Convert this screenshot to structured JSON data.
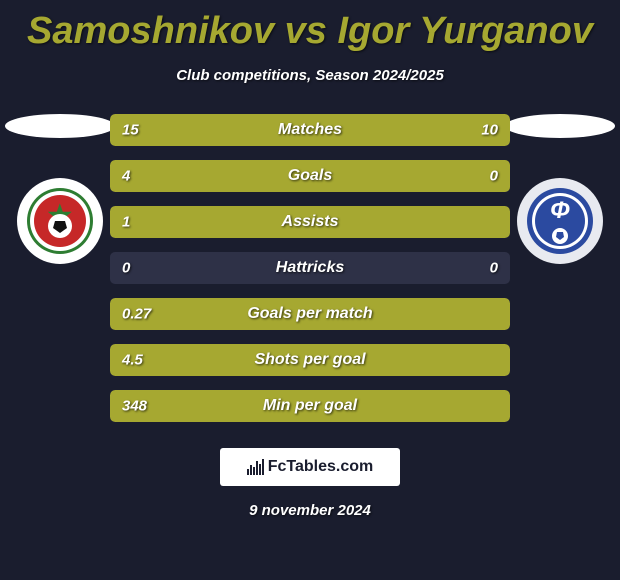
{
  "header": {
    "title": "Samoshnikov vs Igor Yurganov",
    "title_color": "#a6a831",
    "subtitle": "Club competitions, Season 2024/2025"
  },
  "colors": {
    "background": "#1a1d2e",
    "bar_left": "#a6a831",
    "bar_right": "#a6a831",
    "bar_bg": "#2e3147",
    "text": "#ffffff"
  },
  "stats": [
    {
      "label": "Matches",
      "left_val": "15",
      "right_val": "10",
      "left_pct": 60,
      "right_pct": 40,
      "mode": "split"
    },
    {
      "label": "Goals",
      "left_val": "4",
      "right_val": "0",
      "left_pct": 100,
      "right_pct": 0,
      "mode": "split"
    },
    {
      "label": "Assists",
      "left_val": "1",
      "right_val": "",
      "left_pct": 100,
      "right_pct": 0,
      "mode": "single"
    },
    {
      "label": "Hattricks",
      "left_val": "0",
      "right_val": "0",
      "left_pct": 50,
      "right_pct": 50,
      "mode": "empty"
    },
    {
      "label": "Goals per match",
      "left_val": "0.27",
      "right_val": "",
      "left_pct": 100,
      "right_pct": 0,
      "mode": "single"
    },
    {
      "label": "Shots per goal",
      "left_val": "4.5",
      "right_val": "",
      "left_pct": 100,
      "right_pct": 0,
      "mode": "single"
    },
    {
      "label": "Min per goal",
      "left_val": "348",
      "right_val": "",
      "left_pct": 100,
      "right_pct": 0,
      "mode": "single"
    }
  ],
  "crests": {
    "left_bg": "#ffffff",
    "left_inner": "#2e7d32",
    "right_bg": "#e8eaf0",
    "right_inner": "#2b4aa0"
  },
  "footer": {
    "brand": "FcTables.com",
    "date": "9 november 2024"
  }
}
